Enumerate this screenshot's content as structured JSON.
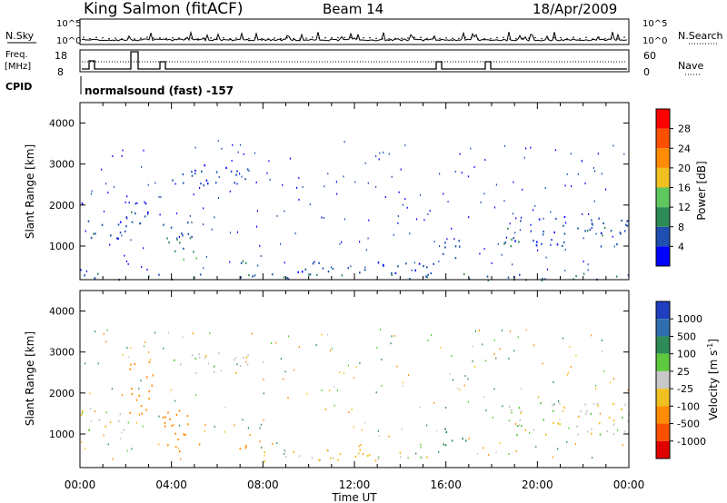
{
  "header": {
    "station": "King Salmon (fitACF)",
    "beam": "Beam 14",
    "date": "18/Apr/2009"
  },
  "top_panels": {
    "nsky_label": "N.Sky",
    "nsky_ticks": [
      "10^5",
      "10^0"
    ],
    "nsearch_label": "N.Search",
    "freq_label_1": "Freq.",
    "freq_label_2": "[MHz]",
    "freq_ticks": [
      "18",
      "8"
    ],
    "nave_ticks": [
      "60",
      "0"
    ],
    "nave_label": "Nave",
    "cpid_label": "CPID",
    "cpid_text": "normalsound (fast) -157"
  },
  "colors": {
    "power_scale": [
      "#0000ff",
      "#1f4fb0",
      "#2e8b57",
      "#5ec85e",
      "#f0c020",
      "#ff8c00",
      "#ff5000",
      "#ff0000"
    ],
    "velocity_scale": [
      "#1f3fc0",
      "#2f6fb0",
      "#2e8b57",
      "#5ec83e",
      "#c8c8c8",
      "#f0c020",
      "#ff8c00",
      "#ff5000",
      "#e00000"
    ]
  },
  "chart_data": [
    {
      "type": "heatmap",
      "name": "Power",
      "xlabel": "",
      "ylabel": "Slant Range [km]",
      "xlim": [
        0,
        24
      ],
      "ylim": [
        180,
        4500
      ],
      "yticks": [
        1000,
        2000,
        3000,
        4000
      ],
      "colorbar": {
        "label": "Power [dB]",
        "ticks": [
          "4",
          "8",
          "12",
          "16",
          "20",
          "24",
          "28"
        ],
        "range": [
          0,
          32
        ]
      },
      "features": [
        {
          "t_start": 0.0,
          "t_end": 2.0,
          "r_low": 1100,
          "r_high": 1700,
          "value_db": 6
        },
        {
          "t_start": 2.0,
          "t_end": 3.0,
          "r_low": 1500,
          "r_high": 2300,
          "value_db": 6
        },
        {
          "t_start": 3.5,
          "t_end": 5.0,
          "r_low": 700,
          "r_high": 1600,
          "value_db": 8
        },
        {
          "t_start": 4.5,
          "t_end": 5.2,
          "r_low": 600,
          "r_high": 900,
          "value_db": 14
        },
        {
          "t_start": 4.0,
          "t_end": 8.0,
          "r_low": 2500,
          "r_high": 3000,
          "value_db": 5
        },
        {
          "t_start": 6.0,
          "t_end": 7.5,
          "r_low": 550,
          "r_high": 750,
          "value_db": 10
        },
        {
          "t_start": 8.0,
          "t_end": 15.5,
          "r_low": 350,
          "r_high": 650,
          "value_db": 5
        },
        {
          "t_start": 15.8,
          "t_end": 17.0,
          "r_low": 700,
          "r_high": 1200,
          "value_db": 6
        },
        {
          "t_start": 18.5,
          "t_end": 24.0,
          "r_low": 1000,
          "r_high": 1800,
          "value_db": 6
        },
        {
          "t_start": 0.0,
          "t_end": 24.0,
          "r_low": 180,
          "r_high": 350,
          "value_db": 8
        }
      ]
    },
    {
      "type": "heatmap",
      "name": "Velocity",
      "xlabel": "Time UT",
      "ylabel": "Slant Range [km]",
      "xlim": [
        0,
        24
      ],
      "ylim": [
        180,
        4500
      ],
      "yticks": [
        1000,
        2000,
        3000,
        4000
      ],
      "xtick_labels": [
        "00:00",
        "04:00",
        "08:00",
        "12:00",
        "16:00",
        "20:00",
        "00:00"
      ],
      "colorbar": {
        "label": "Velocity [m s-1]",
        "label_main": "Velocity [m s",
        "label_sup": "-1",
        "label_end": "]",
        "ticks": [
          "1000",
          "500",
          "100",
          "25",
          "-25",
          "-100",
          "-500",
          "-1000"
        ]
      },
      "features": [
        {
          "t_start": 0.0,
          "t_end": 2.0,
          "r_low": 1100,
          "r_high": 1700,
          "value_ms": 0
        },
        {
          "t_start": 2.0,
          "t_end": 3.2,
          "r_low": 1500,
          "r_high": 2800,
          "value_ms": -150
        },
        {
          "t_start": 3.5,
          "t_end": 5.2,
          "r_low": 600,
          "r_high": 1600,
          "value_ms": -300
        },
        {
          "t_start": 4.0,
          "t_end": 8.0,
          "r_low": 2500,
          "r_high": 3000,
          "value_ms": 0
        },
        {
          "t_start": 6.0,
          "t_end": 7.5,
          "r_low": 550,
          "r_high": 750,
          "value_ms": -300
        },
        {
          "t_start": 8.0,
          "t_end": 15.5,
          "r_low": 350,
          "r_high": 650,
          "value_ms": -40
        },
        {
          "t_start": 15.8,
          "t_end": 17.0,
          "r_low": 700,
          "r_high": 1200,
          "value_ms": 150
        },
        {
          "t_start": 18.5,
          "t_end": 24.0,
          "r_low": 1000,
          "r_high": 1800,
          "value_ms": 0
        }
      ]
    }
  ]
}
